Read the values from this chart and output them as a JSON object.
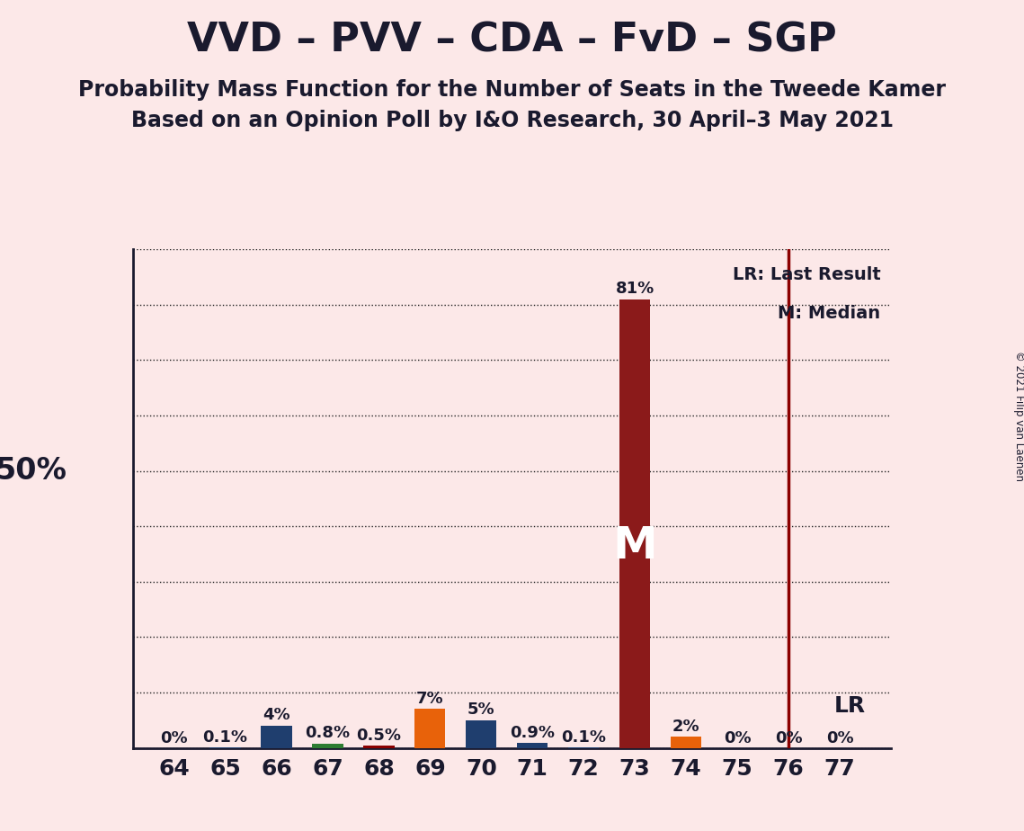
{
  "title": "VVD – PVV – CDA – FvD – SGP",
  "subtitle1": "Probability Mass Function for the Number of Seats in the Tweede Kamer",
  "subtitle2": "Based on an Opinion Poll by I&O Research, 30 April–3 May 2021",
  "copyright": "© 2021 Filip van Laenen",
  "background_color": "#fce8e8",
  "seats": [
    64,
    65,
    66,
    67,
    68,
    69,
    70,
    71,
    72,
    73,
    74,
    75,
    76,
    77
  ],
  "probabilities": [
    0.0,
    0.001,
    0.04,
    0.008,
    0.005,
    0.07,
    0.05,
    0.009,
    0.001,
    0.81,
    0.02,
    0.0,
    0.0,
    0.0
  ],
  "bar_labels": [
    "0%",
    "0.1%",
    "4%",
    "0.8%",
    "0.5%",
    "7%",
    "5%",
    "0.9%",
    "0.1%",
    "81%",
    "2%",
    "0%",
    "0%",
    "0%"
  ],
  "bar_colors": [
    "#1f3e6e",
    "#1f3e6e",
    "#1f3e6e",
    "#2e7d32",
    "#8b0000",
    "#e8620a",
    "#1f3e6e",
    "#1f3e6e",
    "#1f3e6e",
    "#8b1a1a",
    "#e8620a",
    "#1f3e6e",
    "#1f3e6e",
    "#1f3e6e"
  ],
  "median_seat": 73,
  "last_result_seat": 76,
  "ylim": [
    0,
    0.9
  ],
  "yticks": [
    0.0,
    0.1,
    0.2,
    0.3,
    0.4,
    0.5,
    0.6,
    0.7,
    0.8,
    0.9
  ],
  "y50_label": "50%",
  "lr_label": "LR",
  "lr_legend": "LR: Last Result",
  "m_legend": "M: Median",
  "title_fontsize": 32,
  "subtitle_fontsize": 17,
  "label_fontsize": 13,
  "tick_fontsize": 18,
  "axis_label_fontsize": 24,
  "dotted_color": "#222222",
  "lr_line_color": "#8b0000",
  "text_color": "#1a1a2e"
}
